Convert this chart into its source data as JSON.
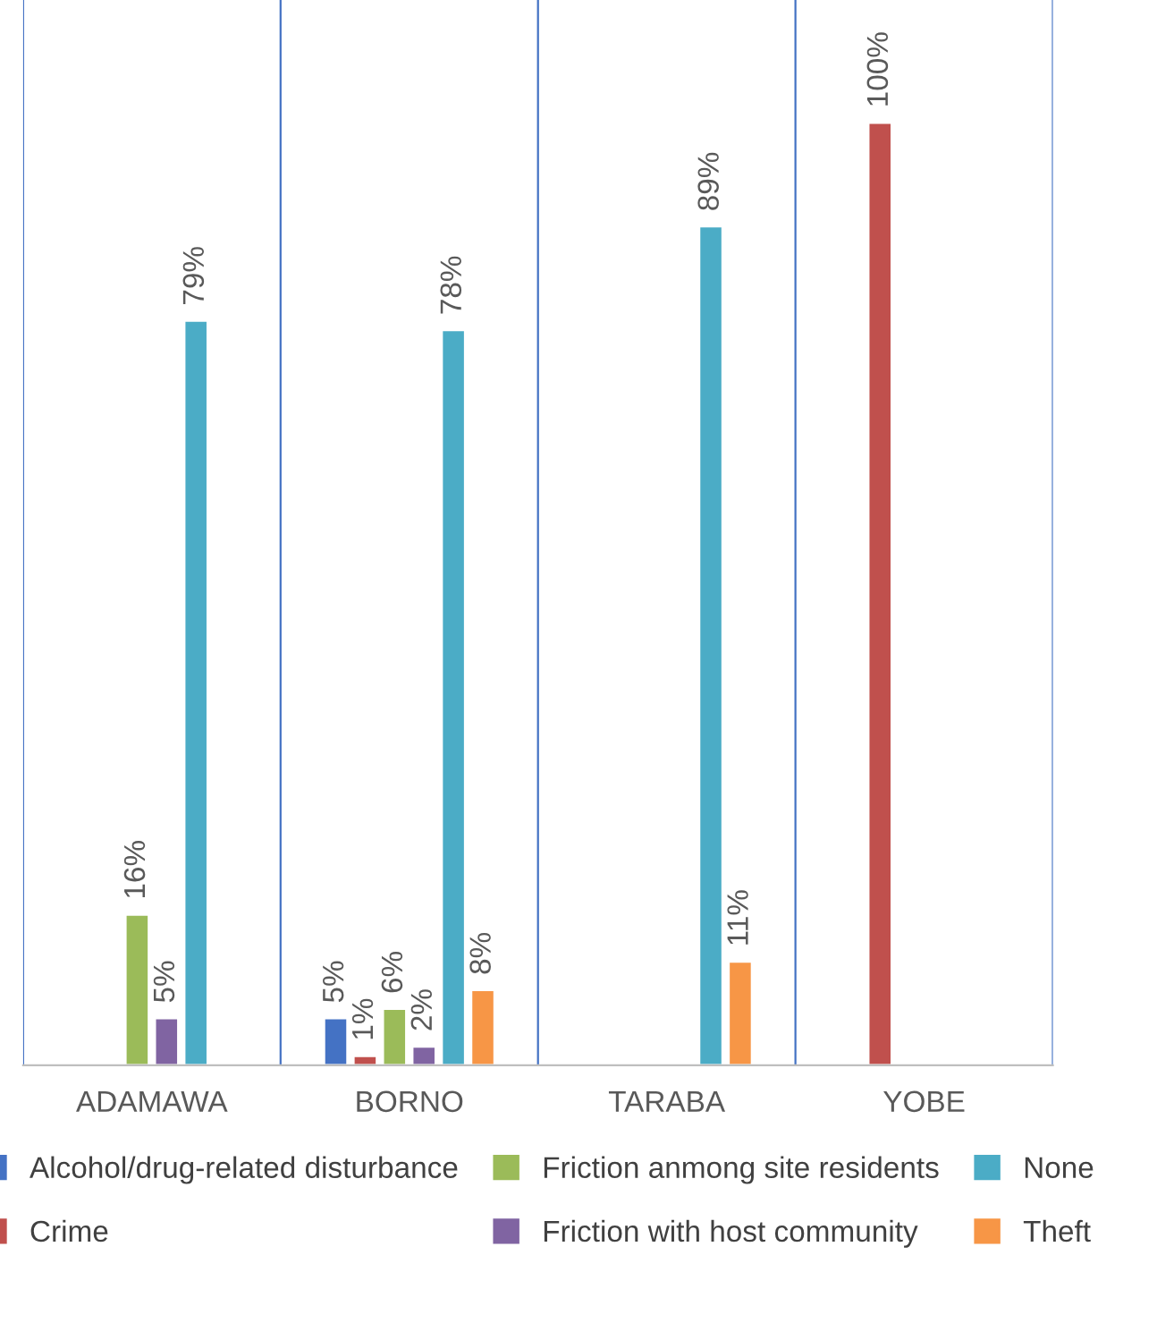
{
  "chart_data": {
    "type": "bar",
    "categories": [
      "ADAMAWA",
      "BORNO",
      "TARABA",
      "YOBE"
    ],
    "series": [
      {
        "name": "Alcohol/drug-related disturbance",
        "color": "#4472c4",
        "values": [
          null,
          5,
          null,
          null
        ],
        "value_labels": [
          null,
          "5%",
          null,
          null
        ]
      },
      {
        "name": "Crime",
        "color": "#c0504d",
        "values": [
          null,
          1,
          null,
          100
        ],
        "value_labels": [
          null,
          "1%",
          null,
          "100%"
        ]
      },
      {
        "name": "Friction anmong site residents",
        "color": "#9bbb59",
        "values": [
          16,
          6,
          null,
          null
        ],
        "value_labels": [
          "16%",
          "6%",
          null,
          null
        ]
      },
      {
        "name": "Friction with host community",
        "color": "#8064a2",
        "values": [
          5,
          2,
          null,
          null
        ],
        "value_labels": [
          "5%",
          "2%",
          null,
          null
        ]
      },
      {
        "name": "None",
        "color": "#4bacc6",
        "values": [
          79,
          78,
          89,
          null
        ],
        "value_labels": [
          "79%",
          "78%",
          "89%",
          null
        ]
      },
      {
        "name": "Theft",
        "color": "#f79646",
        "values": [
          null,
          8,
          11,
          null
        ],
        "value_labels": [
          null,
          "8%",
          "11%",
          null
        ]
      }
    ],
    "grid": "x",
    "legend": "bottom"
  }
}
